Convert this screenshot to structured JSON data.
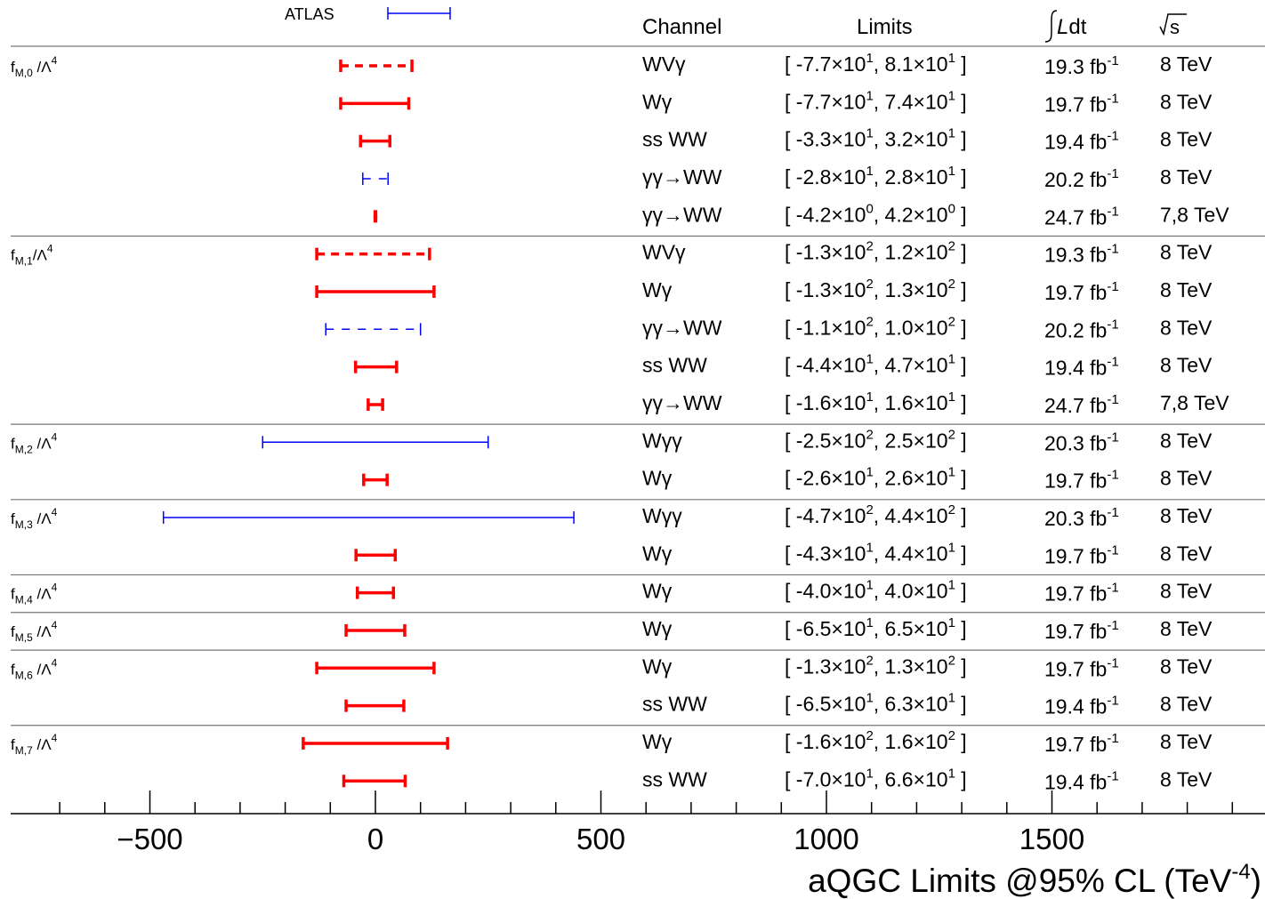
{
  "chart_data": {
    "type": "errorbar",
    "xlabel": "aQGC Limits @95% CL (TeV",
    "xlabel_exp": "-4",
    "xlabel_end": ")",
    "xlim": [
      -800,
      2000
    ],
    "xticks": [
      -500,
      0,
      500,
      1000,
      1500
    ],
    "xtick_labels": [
      "−500",
      "0",
      "500",
      "1000",
      "1500"
    ],
    "legend": [
      {
        "label": "ATLAS",
        "color": "#0000ff"
      }
    ],
    "columns": {
      "channel": "Channel",
      "limits": "Limits",
      "lumi": "Ldt",
      "energy": "s"
    },
    "groups": [
      {
        "prefix": "f",
        "sub": "M,0",
        "suffix": " /Λ",
        "sup": "4",
        "rows": [
          {
            "channel": "WVγ",
            "lo": -77,
            "hi": 81,
            "color": "#ff0000",
            "style": "dashed-thick",
            "limit_parts": [
              "[ -7.7×10",
              "1",
              ", 8.1×10",
              "1",
              " ]"
            ],
            "lumi": "19.3 fb",
            "lumi_exp": "-1",
            "energy": "8 TeV"
          },
          {
            "channel": "Wγ",
            "lo": -77,
            "hi": 74,
            "color": "#ff0000",
            "style": "solid-thick",
            "limit_parts": [
              "[ -7.7×10",
              "1",
              ", 7.4×10",
              "1",
              " ]"
            ],
            "lumi": "19.7 fb",
            "lumi_exp": "-1",
            "energy": "8 TeV"
          },
          {
            "channel": "ss WW",
            "lo": -33,
            "hi": 32,
            "color": "#ff0000",
            "style": "solid-thick",
            "limit_parts": [
              "[ -3.3×10",
              "1",
              ", 3.2×10",
              "1",
              " ]"
            ],
            "lumi": "19.4 fb",
            "lumi_exp": "-1",
            "energy": "8 TeV"
          },
          {
            "channel": "γγ→WW",
            "lo": -28,
            "hi": 28,
            "color": "#0000ff",
            "style": "dashed-thin",
            "limit_parts": [
              "[ -2.8×10",
              "1",
              ", 2.8×10",
              "1",
              " ]"
            ],
            "lumi": "20.2 fb",
            "lumi_exp": "-1",
            "energy": "8 TeV"
          },
          {
            "channel": "γγ→WW",
            "lo": -4.2,
            "hi": 4.2,
            "color": "#ff0000",
            "style": "solid-thick",
            "limit_parts": [
              "[ -4.2×10",
              "0",
              ", 4.2×10",
              "0",
              " ]"
            ],
            "lumi": "24.7 fb",
            "lumi_exp": "-1",
            "energy": "7,8 TeV"
          }
        ]
      },
      {
        "prefix": "f",
        "sub": "M,1",
        "suffix": "/Λ",
        "sup": "4",
        "rows": [
          {
            "channel": "WVγ",
            "lo": -130,
            "hi": 120,
            "color": "#ff0000",
            "style": "dashed-thick",
            "limit_parts": [
              "[ -1.3×10",
              "2",
              ", 1.2×10",
              "2",
              " ]"
            ],
            "lumi": "19.3 fb",
            "lumi_exp": "-1",
            "energy": "8 TeV"
          },
          {
            "channel": "Wγ",
            "lo": -130,
            "hi": 130,
            "color": "#ff0000",
            "style": "solid-thick",
            "limit_parts": [
              "[ -1.3×10",
              "2",
              ", 1.3×10",
              "2",
              " ]"
            ],
            "lumi": "19.7 fb",
            "lumi_exp": "-1",
            "energy": "8 TeV"
          },
          {
            "channel": "γγ→WW",
            "lo": -110,
            "hi": 100,
            "color": "#0000ff",
            "style": "dashed-thin",
            "limit_parts": [
              "[ -1.1×10",
              "2",
              ", 1.0×10",
              "2",
              " ]"
            ],
            "lumi": "20.2 fb",
            "lumi_exp": "-1",
            "energy": "8 TeV"
          },
          {
            "channel": "ss WW",
            "lo": -44,
            "hi": 47,
            "color": "#ff0000",
            "style": "solid-thick",
            "limit_parts": [
              "[ -4.4×10",
              "1",
              ", 4.7×10",
              "1",
              " ]"
            ],
            "lumi": "19.4 fb",
            "lumi_exp": "-1",
            "energy": "8 TeV"
          },
          {
            "channel": "γγ→WW",
            "lo": -16,
            "hi": 16,
            "color": "#ff0000",
            "style": "solid-thick",
            "limit_parts": [
              "[ -1.6×10",
              "1",
              ", 1.6×10",
              "1",
              " ]"
            ],
            "lumi": "24.7 fb",
            "lumi_exp": "-1",
            "energy": "7,8 TeV"
          }
        ]
      },
      {
        "prefix": "f",
        "sub": "M,2",
        "suffix": " /Λ",
        "sup": "4",
        "rows": [
          {
            "channel": "Wγγ",
            "lo": -250,
            "hi": 250,
            "color": "#0000ff",
            "style": "solid-thin",
            "limit_parts": [
              "[ -2.5×10",
              "2",
              ", 2.5×10",
              "2",
              " ]"
            ],
            "lumi": "20.3 fb",
            "lumi_exp": "-1",
            "energy": "8 TeV"
          },
          {
            "channel": "Wγ",
            "lo": -26,
            "hi": 26,
            "color": "#ff0000",
            "style": "solid-thick",
            "limit_parts": [
              "[ -2.6×10",
              "1",
              ", 2.6×10",
              "1",
              " ]"
            ],
            "lumi": "19.7 fb",
            "lumi_exp": "-1",
            "energy": "8 TeV"
          }
        ]
      },
      {
        "prefix": "f",
        "sub": "M,3",
        "suffix": " /Λ",
        "sup": "4",
        "rows": [
          {
            "channel": "Wγγ",
            "lo": -470,
            "hi": 440,
            "color": "#0000ff",
            "style": "solid-thin",
            "limit_parts": [
              "[ -4.7×10",
              "2",
              ", 4.4×10",
              "2",
              " ]"
            ],
            "lumi": "20.3 fb",
            "lumi_exp": "-1",
            "energy": "8 TeV"
          },
          {
            "channel": "Wγ",
            "lo": -43,
            "hi": 44,
            "color": "#ff0000",
            "style": "solid-thick",
            "limit_parts": [
              "[ -4.3×10",
              "1",
              ", 4.4×10",
              "1",
              " ]"
            ],
            "lumi": "19.7 fb",
            "lumi_exp": "-1",
            "energy": "8 TeV"
          }
        ]
      },
      {
        "prefix": "f",
        "sub": "M,4",
        "suffix": " /Λ",
        "sup": "4",
        "rows": [
          {
            "channel": "Wγ",
            "lo": -40,
            "hi": 40,
            "color": "#ff0000",
            "style": "solid-thick",
            "limit_parts": [
              "[ -4.0×10",
              "1",
              ", 4.0×10",
              "1",
              " ]"
            ],
            "lumi": "19.7 fb",
            "lumi_exp": "-1",
            "energy": "8 TeV"
          }
        ]
      },
      {
        "prefix": "f",
        "sub": "M,5",
        "suffix": " /Λ",
        "sup": "4",
        "rows": [
          {
            "channel": "Wγ",
            "lo": -65,
            "hi": 65,
            "color": "#ff0000",
            "style": "solid-thick",
            "limit_parts": [
              "[ -6.5×10",
              "1",
              ", 6.5×10",
              "1",
              " ]"
            ],
            "lumi": "19.7 fb",
            "lumi_exp": "-1",
            "energy": "8 TeV"
          }
        ]
      },
      {
        "prefix": "f",
        "sub": "M,6",
        "suffix": " /Λ",
        "sup": "4",
        "rows": [
          {
            "channel": "Wγ",
            "lo": -130,
            "hi": 130,
            "color": "#ff0000",
            "style": "solid-thick",
            "limit_parts": [
              "[ -1.3×10",
              "2",
              ", 1.3×10",
              "2",
              " ]"
            ],
            "lumi": "19.7 fb",
            "lumi_exp": "-1",
            "energy": "8 TeV"
          },
          {
            "channel": "ss WW",
            "lo": -65,
            "hi": 63,
            "color": "#ff0000",
            "style": "solid-thick",
            "limit_parts": [
              "[ -6.5×10",
              "1",
              ", 6.3×10",
              "1",
              " ]"
            ],
            "lumi": "19.4 fb",
            "lumi_exp": "-1",
            "energy": "8 TeV"
          }
        ]
      },
      {
        "prefix": "f",
        "sub": "M,7",
        "suffix": " /Λ",
        "sup": "4",
        "rows": [
          {
            "channel": "Wγ",
            "lo": -160,
            "hi": 160,
            "color": "#ff0000",
            "style": "solid-thick",
            "limit_parts": [
              "[ -1.6×10",
              "2",
              ", 1.6×10",
              "2",
              " ]"
            ],
            "lumi": "19.7 fb",
            "lumi_exp": "-1",
            "energy": "8 TeV"
          },
          {
            "channel": "ss WW",
            "lo": -70,
            "hi": 66,
            "color": "#ff0000",
            "style": "solid-thick",
            "limit_parts": [
              "[ -7.0×10",
              "1",
              ", 6.6×10",
              "1",
              " ]"
            ],
            "lumi": "19.4 fb",
            "lumi_exp": "-1",
            "energy": "8 TeV"
          }
        ]
      }
    ]
  }
}
